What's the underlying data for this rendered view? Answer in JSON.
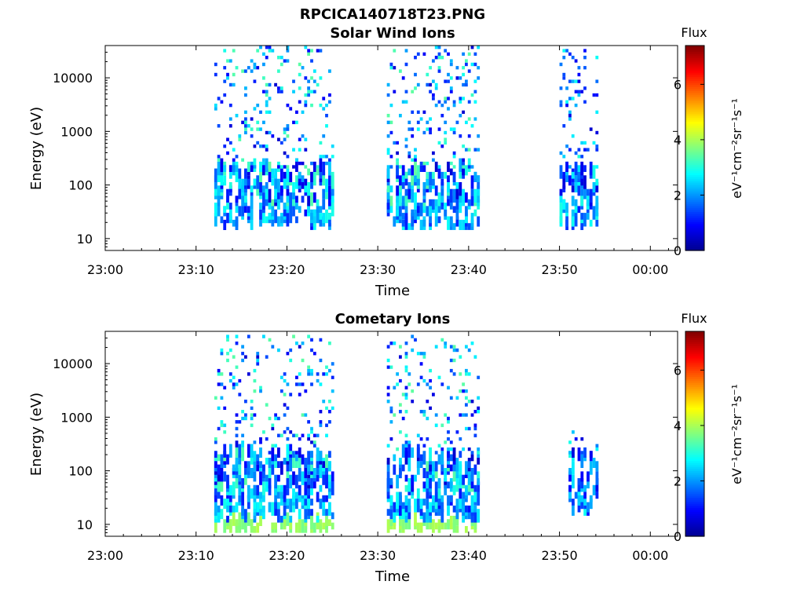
{
  "figure_title": "RPCICA140718T23.PNG",
  "colors": {
    "colormap": [
      "#00008f",
      "#0000ff",
      "#0080ff",
      "#00ffff",
      "#80ff80",
      "#ffff00",
      "#ff8000",
      "#ff0000",
      "#800000"
    ],
    "axes": "#000000",
    "background": "#ffffff"
  },
  "chart_data": [
    {
      "type": "heatmap",
      "title": "Solar Wind Ions",
      "xlabel": "Time",
      "ylabel": "Energy (eV)",
      "y_scale": "log",
      "ylim": [
        6,
        40000
      ],
      "xlim": [
        "23:00",
        "00:03"
      ],
      "x_ticks": [
        "23:00",
        "23:10",
        "23:20",
        "23:30",
        "23:40",
        "23:50",
        "00:00"
      ],
      "y_ticks": [
        "10",
        "100",
        "1000",
        "10000"
      ],
      "colorbar": {
        "label": "Flux",
        "unit": "eV⁻¹cm⁻²sr⁻¹s⁻¹",
        "range": [
          0,
          7.4
        ],
        "ticks": [
          "0",
          "2",
          "4",
          "6"
        ]
      },
      "activity_intervals": [
        {
          "start": "23:12",
          "end": "23:25",
          "energy_range": [
            15,
            40000
          ],
          "flux_range": [
            0.5,
            3.5
          ]
        },
        {
          "start": "23:31",
          "end": "23:41",
          "energy_range": [
            15,
            40000
          ],
          "flux_range": [
            0.5,
            3.5
          ]
        },
        {
          "start": "23:50",
          "end": "23:54",
          "energy_range": [
            15,
            40000
          ],
          "flux_range": [
            0.5,
            3.0
          ]
        }
      ]
    },
    {
      "type": "heatmap",
      "title": "Cometary Ions",
      "xlabel": "Time",
      "ylabel": "Energy (eV)",
      "y_scale": "log",
      "ylim": [
        6,
        40000
      ],
      "xlim": [
        "23:00",
        "00:03"
      ],
      "x_ticks": [
        "23:00",
        "23:10",
        "23:20",
        "23:30",
        "23:40",
        "23:50",
        "00:00"
      ],
      "y_ticks": [
        "10",
        "100",
        "1000",
        "10000"
      ],
      "colorbar": {
        "label": "Flux",
        "unit": "eV⁻¹cm⁻²sr⁻¹s⁻¹",
        "range": [
          0,
          7.4
        ],
        "ticks": [
          "0",
          "2",
          "4",
          "6"
        ]
      },
      "activity_intervals": [
        {
          "start": "23:12",
          "end": "23:25",
          "energy_range": [
            8,
            30000
          ],
          "flux_range": [
            0.5,
            3.5
          ]
        },
        {
          "start": "23:31",
          "end": "23:41",
          "energy_range": [
            8,
            30000
          ],
          "flux_range": [
            0.5,
            3.5
          ]
        },
        {
          "start": "23:51",
          "end": "23:54",
          "energy_range": [
            15,
            500
          ],
          "flux_range": [
            0.5,
            3.0
          ]
        }
      ]
    }
  ]
}
